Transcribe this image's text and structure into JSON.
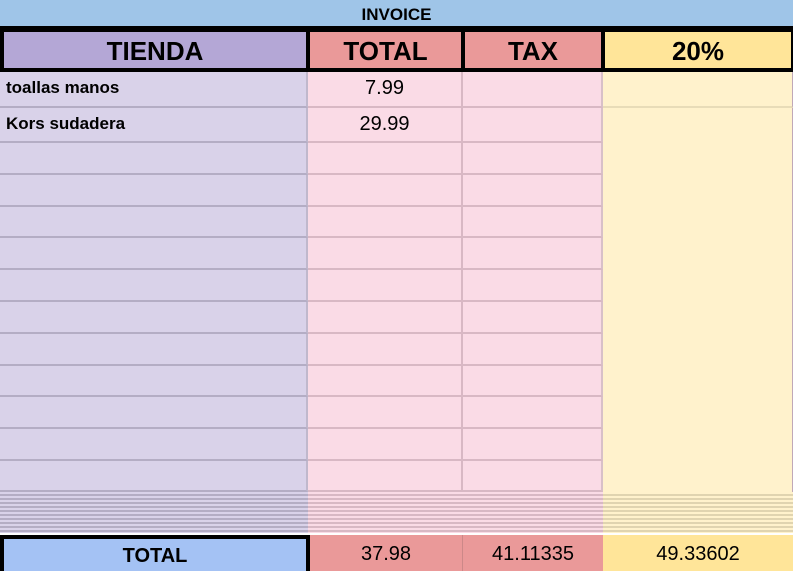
{
  "title": "INVOICE",
  "headers": [
    "TIENDA",
    "TOTAL",
    "TAX",
    "20%"
  ],
  "rows": [
    {
      "tienda": "toallas manos",
      "total": "7.99"
    },
    {
      "tienda": "Kors sudadera",
      "total": "29.99"
    }
  ],
  "totals": {
    "label": "TOTAL",
    "total": "37.98",
    "tax": "41.11335",
    "pct": "49.33602"
  },
  "colors": {
    "title": "#9fc5e8",
    "tienda": "#b4a7d6",
    "total": "#ea9999",
    "pct": "#ffe599",
    "total_label": "#a4c2f4"
  }
}
